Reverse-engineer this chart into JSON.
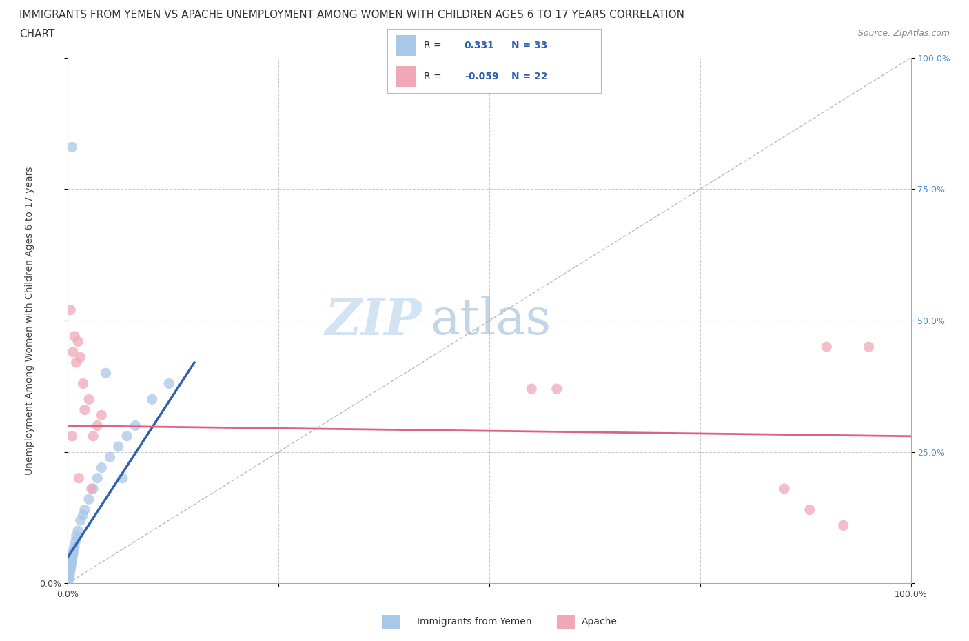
{
  "title_line1": "IMMIGRANTS FROM YEMEN VS APACHE UNEMPLOYMENT AMONG WOMEN WITH CHILDREN AGES 6 TO 17 YEARS CORRELATION",
  "title_line2": "CHART",
  "source": "Source: ZipAtlas.com",
  "ylabel_label": "Unemployment Among Women with Children Ages 6 to 17 years",
  "legend_label1": "Immigrants from Yemen",
  "legend_label2": "Apache",
  "R1": 0.331,
  "N1": 33,
  "R2": -0.059,
  "N2": 22,
  "blue_color": "#a8c8e8",
  "pink_color": "#f0a8b8",
  "blue_trend_color": "#3060b0",
  "pink_trend_color": "#e06080",
  "blue_scatter": [
    [
      0.1,
      0.5
    ],
    [
      0.15,
      1.0
    ],
    [
      0.2,
      1.5
    ],
    [
      0.25,
      2.0
    ],
    [
      0.3,
      2.5
    ],
    [
      0.35,
      3.0
    ],
    [
      0.4,
      3.5
    ],
    [
      0.45,
      4.0
    ],
    [
      0.5,
      4.5
    ],
    [
      0.55,
      5.0
    ],
    [
      0.6,
      5.5
    ],
    [
      0.65,
      6.0
    ],
    [
      0.7,
      6.5
    ],
    [
      0.8,
      7.0
    ],
    [
      0.9,
      8.0
    ],
    [
      1.0,
      9.0
    ],
    [
      1.2,
      10.0
    ],
    [
      1.5,
      12.0
    ],
    [
      2.0,
      14.0
    ],
    [
      2.5,
      16.0
    ],
    [
      3.0,
      18.0
    ],
    [
      3.5,
      20.0
    ],
    [
      4.0,
      22.0
    ],
    [
      5.0,
      24.0
    ],
    [
      6.0,
      26.0
    ],
    [
      7.0,
      28.0
    ],
    [
      8.0,
      30.0
    ],
    [
      10.0,
      35.0
    ],
    [
      12.0,
      38.0
    ],
    [
      1.8,
      13.0
    ],
    [
      0.5,
      83.0
    ],
    [
      4.5,
      40.0
    ],
    [
      6.5,
      20.0
    ]
  ],
  "pink_scatter": [
    [
      0.3,
      52.0
    ],
    [
      0.6,
      44.0
    ],
    [
      0.8,
      47.0
    ],
    [
      1.0,
      42.0
    ],
    [
      1.2,
      46.0
    ],
    [
      1.5,
      43.0
    ],
    [
      1.8,
      38.0
    ],
    [
      2.0,
      33.0
    ],
    [
      2.5,
      35.0
    ],
    [
      3.0,
      28.0
    ],
    [
      3.5,
      30.0
    ],
    [
      4.0,
      32.0
    ],
    [
      1.3,
      20.0
    ],
    [
      2.8,
      18.0
    ],
    [
      55.0,
      37.0
    ],
    [
      58.0,
      37.0
    ],
    [
      90.0,
      45.0
    ],
    [
      95.0,
      45.0
    ],
    [
      85.0,
      18.0
    ],
    [
      88.0,
      14.0
    ],
    [
      92.0,
      11.0
    ],
    [
      0.5,
      28.0
    ]
  ],
  "blue_trend_x": [
    0.0,
    15.0
  ],
  "blue_trend_y": [
    5.0,
    42.0
  ],
  "pink_trend_x": [
    0.0,
    100.0
  ],
  "pink_trend_y": [
    30.0,
    28.0
  ],
  "watermark_zip": "ZIP",
  "watermark_atlas": "atlas",
  "xmin": 0,
  "xmax": 100,
  "ymin": 0,
  "ymax": 100,
  "grid_color": "#cccccc",
  "background_color": "#ffffff",
  "title_fontsize": 11,
  "axis_label_fontsize": 9
}
